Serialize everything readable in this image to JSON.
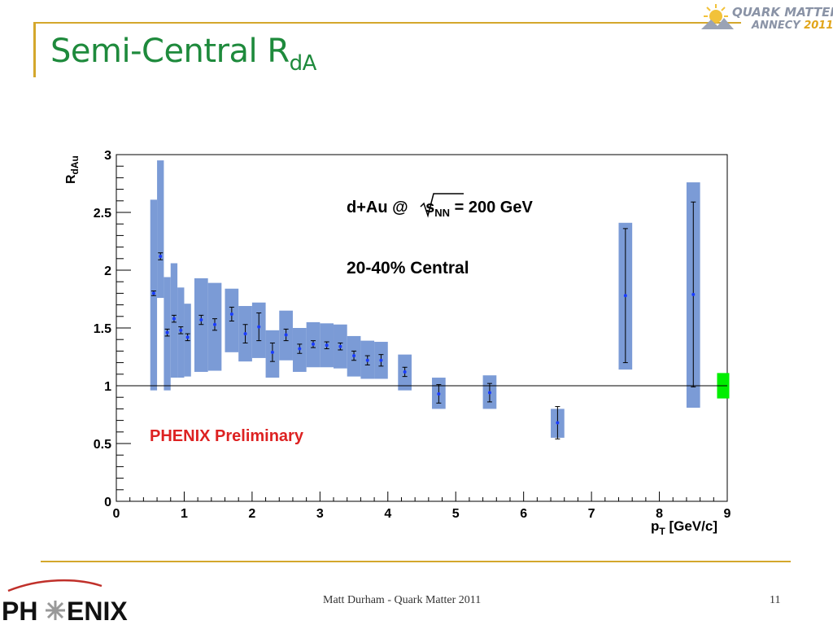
{
  "slide": {
    "title_main": "Semi-Central R",
    "title_sub": "dA",
    "footer": "Matt Durham - Quark Matter 2011",
    "page_number": "11",
    "logo_top_line1": "QUARK MATTER",
    "logo_top_line2": "ANNECY",
    "logo_top_year": "2011",
    "logo_bottom_text": "PHENIX"
  },
  "colors": {
    "title": "#1e8a3c",
    "accent_rule": "#d4a72c",
    "sys_box": "#7b9bd6",
    "point": "#1a3cff",
    "norm_box": "#00ee00",
    "preliminary": "#dd2222"
  },
  "chart_data": {
    "type": "scatter",
    "xlabel_main": "p",
    "xlabel_sub": "T",
    "xlabel_unit": " [GeV/c]",
    "ylabel_main": "R",
    "ylabel_sub": "dAu",
    "xlim": [
      0,
      9
    ],
    "ylim": [
      0,
      3
    ],
    "xticks": [
      0,
      1,
      2,
      3,
      4,
      5,
      6,
      7,
      8,
      9
    ],
    "yticks": [
      0,
      0.5,
      1,
      1.5,
      2,
      2.5,
      3
    ],
    "ytick_labels": [
      "0",
      "0.5",
      "1",
      "1.5",
      "2",
      "2.5",
      "3"
    ],
    "reference_line": 1,
    "annotation_system_pre": "d+Au @ ",
    "annotation_system_sqrt": "s",
    "annotation_system_sub": "NN",
    "annotation_system_post": " = 200 GeV",
    "annotation_centrality": "20-40% Central",
    "annotation_preliminary": "PHENIX Preliminary",
    "points": [
      {
        "x": 0.55,
        "y": 1.8,
        "err": 0.02,
        "sys_lo": 0.96,
        "sys_hi": 2.61,
        "w": 0.1
      },
      {
        "x": 0.65,
        "y": 2.12,
        "err": 0.03,
        "sys_lo": 1.76,
        "sys_hi": 2.95,
        "w": 0.1
      },
      {
        "x": 0.75,
        "y": 1.46,
        "err": 0.03,
        "sys_lo": 0.96,
        "sys_hi": 1.94,
        "w": 0.1
      },
      {
        "x": 0.85,
        "y": 1.58,
        "err": 0.03,
        "sys_lo": 1.07,
        "sys_hi": 2.06,
        "w": 0.1
      },
      {
        "x": 0.95,
        "y": 1.48,
        "err": 0.03,
        "sys_lo": 1.07,
        "sys_hi": 1.85,
        "w": 0.1
      },
      {
        "x": 1.05,
        "y": 1.42,
        "err": 0.03,
        "sys_lo": 1.08,
        "sys_hi": 1.71,
        "w": 0.1
      },
      {
        "x": 1.25,
        "y": 1.57,
        "err": 0.04,
        "sys_lo": 1.12,
        "sys_hi": 1.93,
        "w": 0.2
      },
      {
        "x": 1.45,
        "y": 1.53,
        "err": 0.05,
        "sys_lo": 1.13,
        "sys_hi": 1.89,
        "w": 0.2
      },
      {
        "x": 1.7,
        "y": 1.62,
        "err": 0.06,
        "sys_lo": 1.29,
        "sys_hi": 1.84,
        "w": 0.2
      },
      {
        "x": 1.9,
        "y": 1.45,
        "err": 0.08,
        "sys_lo": 1.21,
        "sys_hi": 1.69,
        "w": 0.2
      },
      {
        "x": 2.1,
        "y": 1.51,
        "err": 0.12,
        "sys_lo": 1.24,
        "sys_hi": 1.72,
        "w": 0.2
      },
      {
        "x": 2.3,
        "y": 1.29,
        "err": 0.08,
        "sys_lo": 1.07,
        "sys_hi": 1.48,
        "w": 0.2
      },
      {
        "x": 2.5,
        "y": 1.44,
        "err": 0.05,
        "sys_lo": 1.22,
        "sys_hi": 1.65,
        "w": 0.2
      },
      {
        "x": 2.7,
        "y": 1.32,
        "err": 0.04,
        "sys_lo": 1.12,
        "sys_hi": 1.5,
        "w": 0.2
      },
      {
        "x": 2.9,
        "y": 1.36,
        "err": 0.03,
        "sys_lo": 1.16,
        "sys_hi": 1.55,
        "w": 0.2
      },
      {
        "x": 3.1,
        "y": 1.35,
        "err": 0.03,
        "sys_lo": 1.16,
        "sys_hi": 1.54,
        "w": 0.2
      },
      {
        "x": 3.3,
        "y": 1.34,
        "err": 0.03,
        "sys_lo": 1.15,
        "sys_hi": 1.53,
        "w": 0.2
      },
      {
        "x": 3.5,
        "y": 1.26,
        "err": 0.04,
        "sys_lo": 1.08,
        "sys_hi": 1.43,
        "w": 0.2
      },
      {
        "x": 3.7,
        "y": 1.22,
        "err": 0.04,
        "sys_lo": 1.06,
        "sys_hi": 1.39,
        "w": 0.2
      },
      {
        "x": 3.9,
        "y": 1.22,
        "err": 0.05,
        "sys_lo": 1.06,
        "sys_hi": 1.38,
        "w": 0.2
      },
      {
        "x": 4.25,
        "y": 1.12,
        "err": 0.04,
        "sys_lo": 0.96,
        "sys_hi": 1.27,
        "w": 0.2
      },
      {
        "x": 4.75,
        "y": 0.93,
        "err": 0.08,
        "sys_lo": 0.8,
        "sys_hi": 1.07,
        "w": 0.2
      },
      {
        "x": 5.5,
        "y": 0.94,
        "err": 0.08,
        "sys_lo": 0.8,
        "sys_hi": 1.09,
        "w": 0.2
      },
      {
        "x": 6.5,
        "y": 0.68,
        "err": 0.14,
        "sys_lo": 0.55,
        "sys_hi": 0.8,
        "w": 0.2
      },
      {
        "x": 7.5,
        "y": 1.78,
        "err": 0.58,
        "sys_lo": 1.14,
        "sys_hi": 2.41,
        "w": 0.2
      },
      {
        "x": 8.5,
        "y": 1.79,
        "err": 0.8,
        "sys_lo": 0.81,
        "sys_hi": 2.76,
        "w": 0.2
      }
    ],
    "normalization_box": {
      "x": 8.85,
      "w": 0.18,
      "lo": 0.89,
      "hi": 1.11
    },
    "legend": "none",
    "grid": false
  }
}
